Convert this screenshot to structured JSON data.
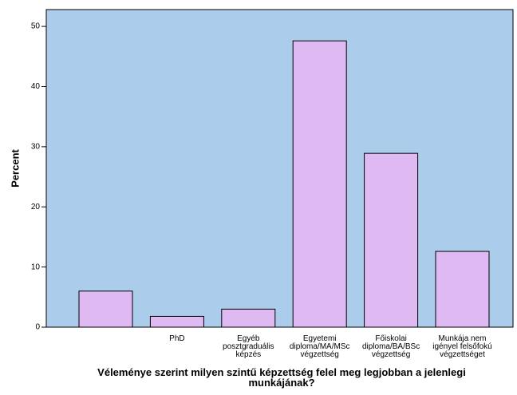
{
  "chart_data": {
    "type": "bar",
    "categories": [
      null,
      "PhD",
      "Egyéb\nposztgraduális\nképzés",
      "Egyetemi\ndiploma/MA/MSc\nvégzettség",
      "Főiskolai\ndiploma/BA/BSc\nvégzettség",
      "Munkája nem\nigényel felsőfokú\nvégzettséget"
    ],
    "values": [
      6.0,
      1.8,
      3.0,
      47.6,
      28.9,
      12.6
    ],
    "color": "#dfb9f2",
    "background": "#abcdeb",
    "ylim": [
      0,
      52.8
    ],
    "yticks": [
      0,
      10,
      20,
      30,
      40,
      50
    ],
    "y_label": "Percent",
    "x_label": "Véleménye szerint milyen szintű képzettség felel meg legjobban a jelenlegi\nmunkájának?"
  }
}
